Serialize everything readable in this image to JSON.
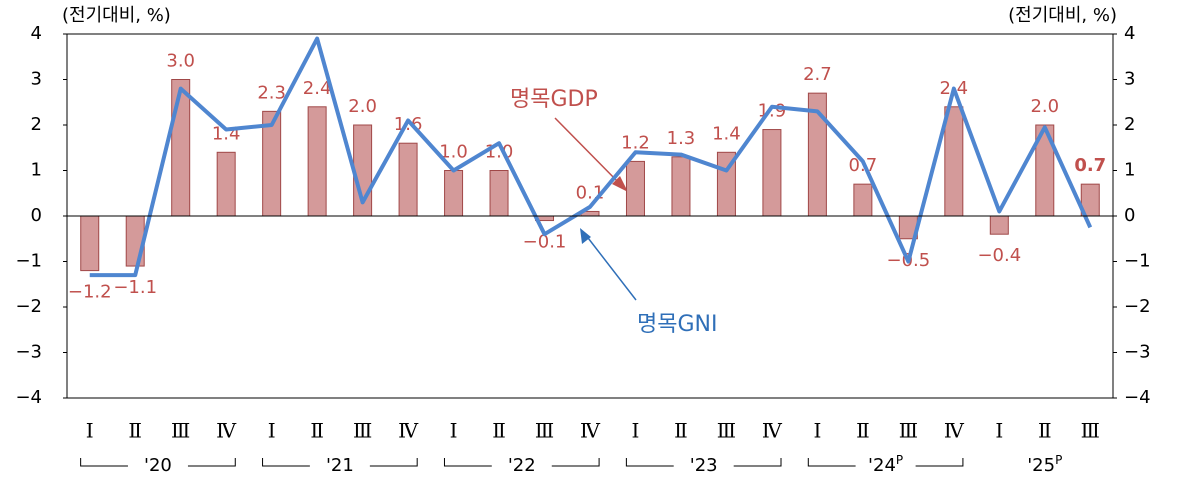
{
  "chart_data": {
    "type": "bar_line",
    "y_unit_left": "(전기대비, %)",
    "y_unit_right": "(전기대비, %)",
    "categories": [
      "Ⅰ",
      "Ⅱ",
      "Ⅲ",
      "Ⅳ",
      "Ⅰ",
      "Ⅱ",
      "Ⅲ",
      "Ⅳ",
      "Ⅰ",
      "Ⅱ",
      "Ⅲ",
      "Ⅳ",
      "Ⅰ",
      "Ⅱ",
      "Ⅲ",
      "Ⅳ",
      "Ⅰ",
      "Ⅱ",
      "Ⅲ",
      "Ⅳ",
      "Ⅰ",
      "Ⅱ",
      "Ⅲ"
    ],
    "years": [
      {
        "label": "'20"
      },
      {
        "label": "'21"
      },
      {
        "label": "'22"
      },
      {
        "label": "'23"
      },
      {
        "label": "'24",
        "sup": "P"
      },
      {
        "label": "'25",
        "sup": "P"
      }
    ],
    "series": [
      {
        "name": "명목GDP",
        "type": "bar",
        "color": "#d49a9a",
        "label_color": "#c0504d",
        "values": [
          -1.2,
          -1.1,
          3.0,
          1.4,
          2.3,
          2.4,
          2.0,
          1.6,
          1.0,
          1.0,
          -0.1,
          0.1,
          1.2,
          1.3,
          1.4,
          1.9,
          2.7,
          0.7,
          -0.5,
          2.4,
          -0.4,
          2.0,
          0.7
        ],
        "value_labels": [
          "−1.2",
          "−1.1",
          "3.0",
          "1.4",
          "2.3",
          "2.4",
          "2.0",
          "1.6",
          "1.0",
          "1.0",
          "−0.1",
          "0.1",
          "1.2",
          "1.3",
          "1.4",
          "1.9",
          "2.7",
          "0.7",
          "−0.5",
          "2.4",
          "−0.4",
          "2.0",
          "0.7"
        ]
      },
      {
        "name": "명목GNI",
        "type": "line",
        "color": "#4f86d0",
        "axis": "y2",
        "values": [
          -1.3,
          -1.3,
          2.8,
          1.9,
          2.0,
          3.9,
          0.3,
          2.1,
          1.0,
          1.6,
          -0.4,
          0.2,
          1.4,
          1.35,
          1.0,
          2.4,
          2.3,
          1.2,
          -1.0,
          2.8,
          0.1,
          1.95,
          -0.25
        ]
      }
    ],
    "ylim": [
      -4,
      4
    ],
    "yticks": [
      {
        "value": -4,
        "label": "−4"
      },
      {
        "value": -3,
        "label": "−3"
      },
      {
        "value": -2,
        "label": "−2"
      },
      {
        "value": -1,
        "label": "−1"
      },
      0,
      1,
      2,
      3,
      4
    ],
    "y2lim": [
      -4,
      4
    ],
    "y2ticks": [
      {
        "value": -4,
        "label": "−4"
      },
      {
        "value": -3,
        "label": "−3"
      },
      {
        "value": -2,
        "label": "−2"
      },
      {
        "value": -1,
        "label": "−1"
      },
      0,
      1,
      2,
      3,
      4
    ]
  }
}
